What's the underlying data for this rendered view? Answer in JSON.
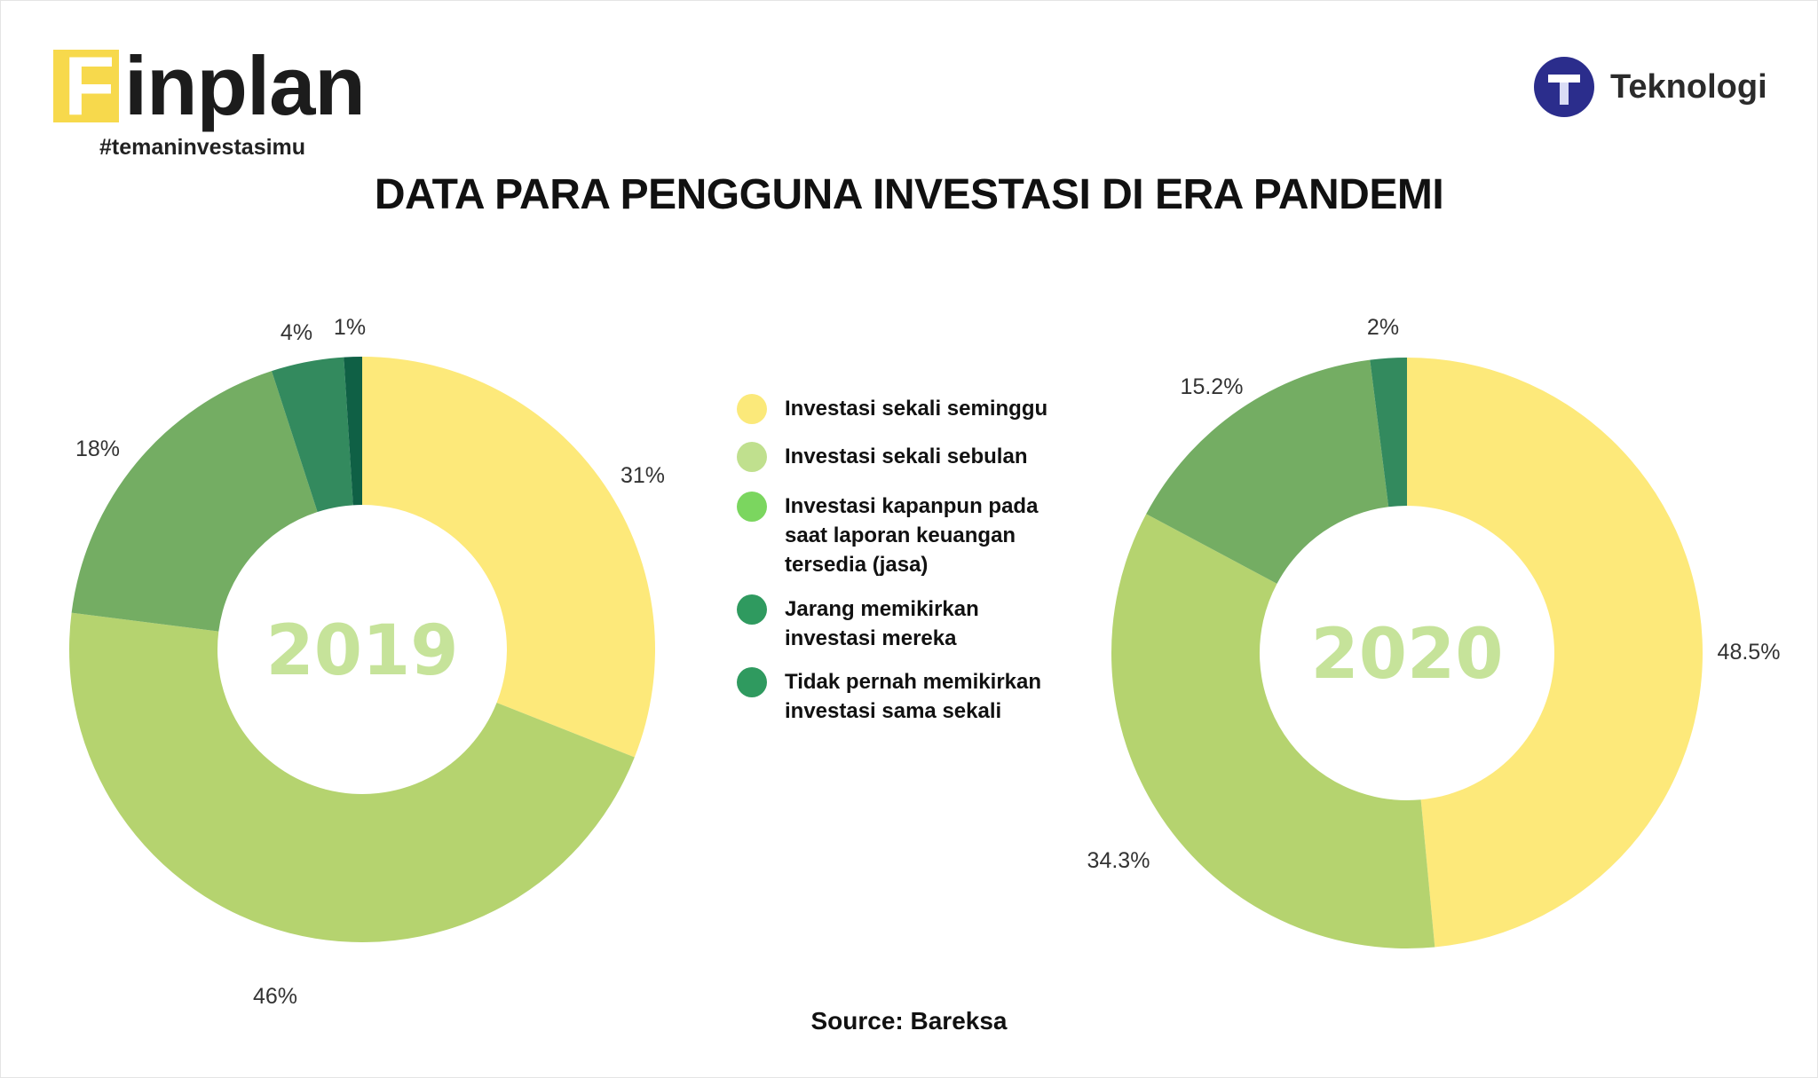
{
  "brand": {
    "first_letter": "F",
    "rest": "inplan",
    "tagline": "#temaninvestasimu",
    "partner_name": "Teknologi",
    "partner_badge_letter": "T"
  },
  "title": "DATA PARA PENGGUNA INVESTASI DI ERA PANDEMI",
  "legend": [
    {
      "label": "Investasi sekali seminggu",
      "color": "#fbe97a"
    },
    {
      "label": "Investasi sekali sebulan",
      "color": "#c0e08e"
    },
    {
      "label": "Investasi kapanpun pada saat laporan keuangan tersedia (jasa)",
      "color": "#7bd65f"
    },
    {
      "label": "Jarang memikirkan investasi mereka",
      "color": "#2f9a5f"
    },
    {
      "label": "Tidak pernah memikirkan investasi sama sekali",
      "color": "#2f9a5f"
    }
  ],
  "chart_data": [
    {
      "type": "pie",
      "center_label": "2019",
      "slices": [
        {
          "label": "Investasi sekali seminggu",
          "value": 31,
          "display": "31%",
          "color": "#fde97a"
        },
        {
          "label": "Investasi sekali sebulan",
          "value": 46,
          "display": "46%",
          "color": "#b5d36f"
        },
        {
          "label": "Investasi kapanpun pada saat laporan keuangan tersedia (jasa)",
          "value": 18,
          "display": "18%",
          "color": "#74ad63"
        },
        {
          "label": "Jarang memikirkan investasi mereka",
          "value": 4,
          "display": "4%",
          "color": "#338a5e"
        },
        {
          "label": "Tidak pernah memikirkan investasi sama sekali",
          "value": 1,
          "display": "1%",
          "color": "#0f6045"
        }
      ]
    },
    {
      "type": "pie",
      "center_label": "2020",
      "slices": [
        {
          "label": "Investasi sekali seminggu",
          "value": 48.5,
          "display": "48.5%",
          "color": "#fde97a"
        },
        {
          "label": "Investasi sekali sebulan",
          "value": 34.3,
          "display": "34.3%",
          "color": "#b5d36f"
        },
        {
          "label": "Investasi kapanpun pada saat laporan keuangan tersedia (jasa)",
          "value": 15.2,
          "display": "15.2%",
          "color": "#74ad63"
        },
        {
          "label": "Jarang memikirkan investasi mereka",
          "value": 2,
          "display": "2%",
          "color": "#338a5e"
        }
      ]
    }
  ],
  "source": "Source: Bareksa"
}
